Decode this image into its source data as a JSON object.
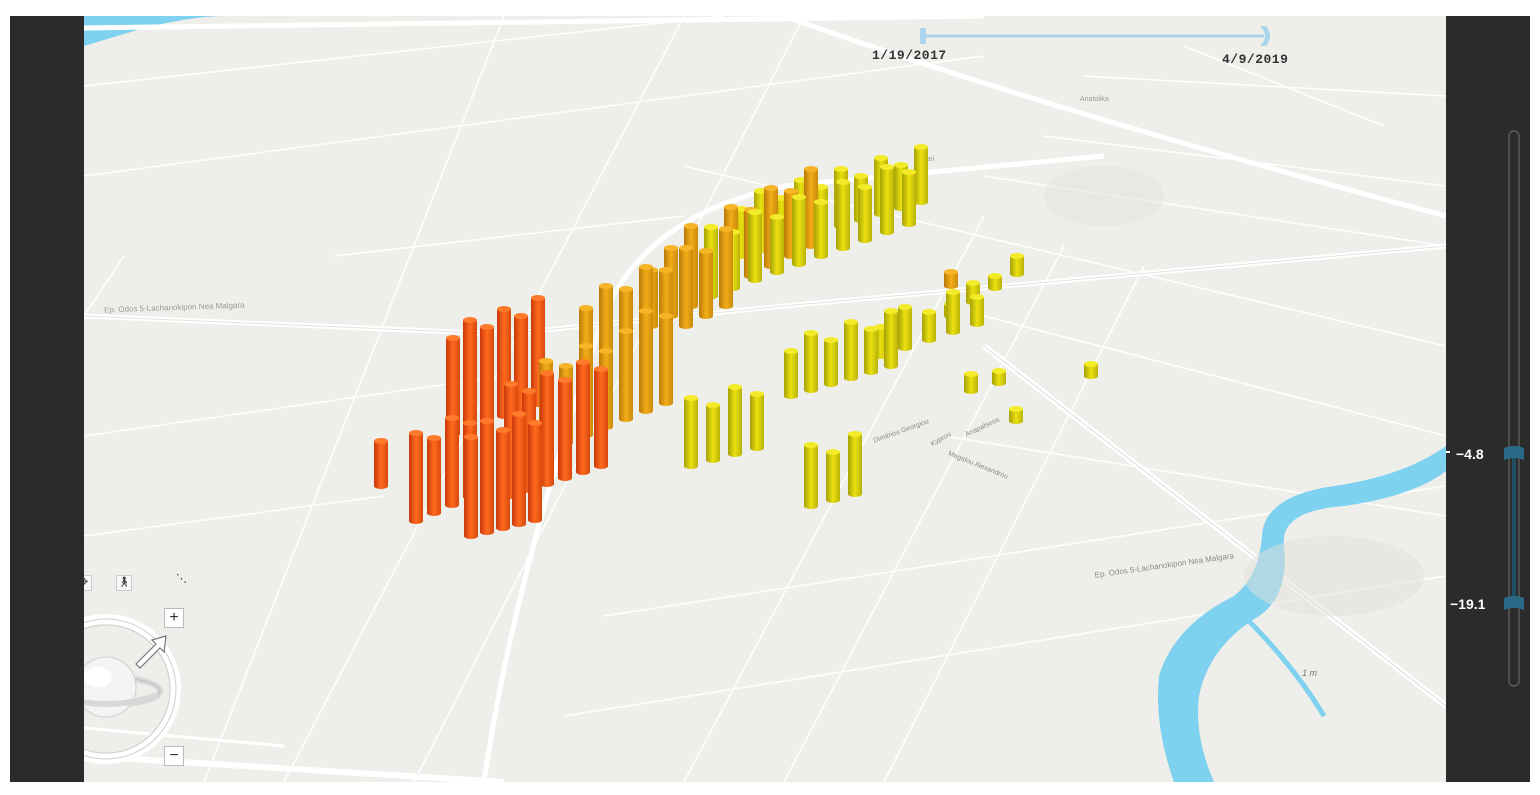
{
  "time_slider": {
    "start_label": "1/19/2017",
    "end_label": "4/9/2019"
  },
  "depth_slider": {
    "upper_label": "−4.8",
    "lower_label": "−19.1"
  },
  "map_labels": {
    "road_west": "Ep. Odos 5-Lachanokipon Nea Malgara",
    "road_east": "Ep. Odos 5-Lachanokipon Nea Malgara",
    "street_1": "Dimitriou Georgiou",
    "street_2": "Kyprou",
    "street_3": "Megalou Alexandrou",
    "street_4": "Anapafseos",
    "street_5": "Kanari",
    "street_6": "Anatolika",
    "scale_text": "1 m"
  },
  "nav_controls": {
    "zoom_in": "+",
    "zoom_out": "−",
    "tilt_up": "↑",
    "tilt_down": "↓",
    "collapse": "⌄",
    "dots": "⋱"
  },
  "colors": {
    "low_value": "#f5e60a",
    "high_value": "#ff5a1a",
    "water": "#7fd1f0",
    "slider_track": "#a9d4ec",
    "panel": "#2b2b2b"
  },
  "icons": [
    "pan-icon",
    "walk-icon",
    "globe-navigator-icon",
    "cursor-arrow-icon"
  ]
}
